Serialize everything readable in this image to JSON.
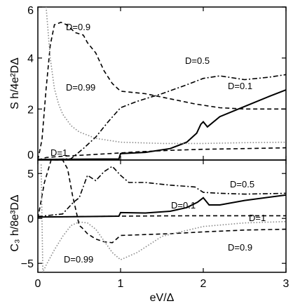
{
  "chart_data": [
    {
      "type": "line",
      "panel": "top",
      "ylabel": "S h/4e²DΔ",
      "xlim": [
        0,
        3
      ],
      "ylim": [
        0,
        6
      ],
      "x_ticks": [
        "0",
        "1",
        "2",
        "3"
      ],
      "y_ticks": [
        {
          "v": 0,
          "t": "0"
        },
        {
          "v": 2,
          "t": "2"
        },
        {
          "v": 4,
          "t": "4"
        },
        {
          "v": 6,
          "t": "6"
        }
      ],
      "series": [
        {
          "name": "D=0.1",
          "style": "solid",
          "x": [
            0,
            0.98,
            1.0,
            1.3,
            1.6,
            1.8,
            1.92,
            1.97,
            2.0,
            2.05,
            2.2,
            2.5,
            2.8,
            3.0
          ],
          "y": [
            0.02,
            0.04,
            0.25,
            0.3,
            0.45,
            0.7,
            1.05,
            1.4,
            1.5,
            1.3,
            1.7,
            2.1,
            2.5,
            2.75
          ]
        },
        {
          "name": "D=0.5",
          "style": "dashdot",
          "x": [
            0,
            0.4,
            0.55,
            0.7,
            0.85,
            1.0,
            1.2,
            1.5,
            1.8,
            2.0,
            2.2,
            2.5,
            2.8,
            3.0
          ],
          "y": [
            0,
            0.05,
            0.45,
            0.9,
            1.5,
            2.05,
            2.3,
            2.6,
            2.95,
            3.2,
            3.3,
            3.15,
            3.25,
            3.35
          ]
        },
        {
          "name": "D=0.9",
          "style": "dashed",
          "x": [
            0,
            0.05,
            0.1,
            0.15,
            0.2,
            0.28,
            0.35,
            0.45,
            0.55,
            0.6,
            0.7,
            0.8,
            0.9,
            1.0,
            1.3,
            1.6,
            1.9,
            2.2,
            2.5,
            3.0
          ],
          "y": [
            0,
            0.8,
            2.8,
            4.5,
            5.3,
            5.4,
            5.3,
            5.0,
            4.9,
            4.6,
            4.2,
            3.5,
            3.0,
            2.7,
            2.6,
            2.4,
            2.2,
            2.05,
            2.0,
            2.0
          ]
        },
        {
          "name": "D=0.99",
          "style": "dotted",
          "x": [
            0.1,
            0.15,
            0.2,
            0.25,
            0.3,
            0.4,
            0.5,
            0.7,
            1.0,
            1.5,
            2.0,
            2.5,
            3.0
          ],
          "y": [
            6,
            4.0,
            2.8,
            2.2,
            1.8,
            1.35,
            1.1,
            0.85,
            0.7,
            0.65,
            0.65,
            0.68,
            0.7
          ]
        },
        {
          "name": "D=1",
          "style": "dashed",
          "x": [
            0,
            0.1,
            0.3,
            0.6,
            0.9,
            1.2,
            1.6,
            2.0,
            2.5,
            3.0
          ],
          "y": [
            0,
            0.1,
            0.15,
            0.2,
            0.26,
            0.32,
            0.38,
            0.42,
            0.45,
            0.48
          ]
        }
      ],
      "annotations": [
        "D=0.9",
        "D=0.99",
        "D=0.5",
        "D=0.1",
        "D=1"
      ]
    },
    {
      "type": "line",
      "panel": "bottom",
      "ylabel": "C₃ h/8e³DΔ",
      "xlabel": "eV/Δ",
      "xlim": [
        0,
        3
      ],
      "ylim": [
        -6,
        6.5
      ],
      "x_ticks": [
        "0",
        "1",
        "2",
        "3"
      ],
      "y_ticks": [
        {
          "v": -5,
          "t": "−5"
        },
        {
          "v": 0,
          "t": "0"
        },
        {
          "v": 5,
          "t": "5"
        }
      ],
      "series": [
        {
          "name": "D=0.1",
          "style": "solid",
          "x": [
            0,
            0.98,
            1.0,
            1.3,
            1.6,
            1.8,
            1.93,
            2.0,
            2.07,
            2.2,
            2.5,
            3.0
          ],
          "y": [
            0.15,
            0.25,
            0.65,
            0.6,
            0.8,
            1.2,
            1.8,
            2.3,
            1.5,
            1.5,
            2.0,
            2.6
          ]
        },
        {
          "name": "D=0.5",
          "style": "dashdot",
          "x": [
            0,
            0.3,
            0.37,
            0.43,
            0.5,
            0.6,
            0.7,
            0.8,
            0.9,
            1.0,
            1.1,
            1.3,
            1.6,
            1.9,
            2.0,
            2.2,
            2.5,
            3.0
          ],
          "y": [
            0.2,
            0.5,
            1.2,
            1.8,
            2.3,
            4.8,
            4.2,
            5.2,
            5.8,
            4.8,
            4.0,
            4.0,
            3.7,
            3.5,
            2.9,
            2.8,
            2.7,
            2.8
          ]
        },
        {
          "name": "D=0.9",
          "style": "dashed",
          "x": [
            0,
            0.08,
            0.16,
            0.23,
            0.3,
            0.36,
            0.42,
            0.47,
            0.5,
            0.53,
            0.6,
            0.7,
            0.8,
            0.9,
            1.0,
            1.3,
            1.6,
            2.0,
            2.5,
            3.0
          ],
          "y": [
            0,
            4,
            6.5,
            6.5,
            6.5,
            5.5,
            2.5,
            0.5,
            -0.8,
            -1.0,
            -1.7,
            -2.3,
            -2.6,
            -2.7,
            -1.9,
            -1.8,
            -1.7,
            -1.5,
            -1.3,
            -1.2
          ]
        },
        {
          "name": "D=0.99",
          "style": "dotted",
          "x": [
            0.04,
            0.06,
            0.1,
            0.2,
            0.3,
            0.4,
            0.5,
            0.6,
            0.7,
            0.8,
            0.9,
            1.0,
            1.2,
            1.5,
            2.0,
            2.5,
            3.0
          ],
          "y": [
            6,
            -6,
            -5.2,
            -3.5,
            -2.0,
            -0.8,
            -0.4,
            -0.5,
            -1.2,
            -2.5,
            -3.8,
            -4.6,
            -3.8,
            -2.0,
            -0.9,
            -0.5,
            -0.35
          ]
        },
        {
          "name": "D=1",
          "style": "dashed",
          "x": [
            0,
            0.5,
            1.0,
            1.5,
            2.0,
            2.5,
            3.0
          ],
          "y": [
            0.15,
            0.2,
            0.25,
            0.28,
            0.3,
            0.3,
            0.3
          ]
        }
      ],
      "annotations": [
        "D=0.5",
        "D=0.1",
        "D=1",
        "D=0.9",
        "D=0.99"
      ]
    }
  ]
}
